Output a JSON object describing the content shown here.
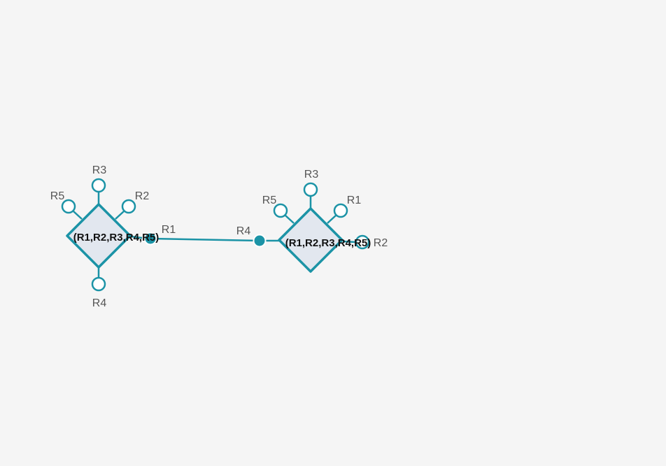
{
  "colors": {
    "background": "#f5f5f5",
    "stroke": "#1b93a6",
    "node_fill": "#e2e7ef",
    "port_fill": "#ffffff",
    "port_connected_fill": "#1b93a6",
    "port_label": "#555555",
    "node_label": "#111111"
  },
  "nodes": [
    {
      "id": "node-left",
      "label": "(R1,R2,R3,R4,R5)",
      "ports": [
        {
          "label": "R3",
          "connected": false
        },
        {
          "label": "R2",
          "connected": false
        },
        {
          "label": "R1",
          "connected": true
        },
        {
          "label": "R4",
          "connected": false
        },
        {
          "label": "R5",
          "connected": false
        }
      ]
    },
    {
      "id": "node-right",
      "label": "(R1,R2,R3,R4,R5)",
      "ports": [
        {
          "label": "R3",
          "connected": false
        },
        {
          "label": "R1",
          "connected": false
        },
        {
          "label": "R2",
          "connected": false
        },
        {
          "label": "R4",
          "connected": true
        },
        {
          "label": "R5",
          "connected": false
        }
      ]
    }
  ],
  "edges": [
    {
      "from_node": 0,
      "from_port": 2,
      "to_node": 1,
      "to_port": 3
    }
  ]
}
